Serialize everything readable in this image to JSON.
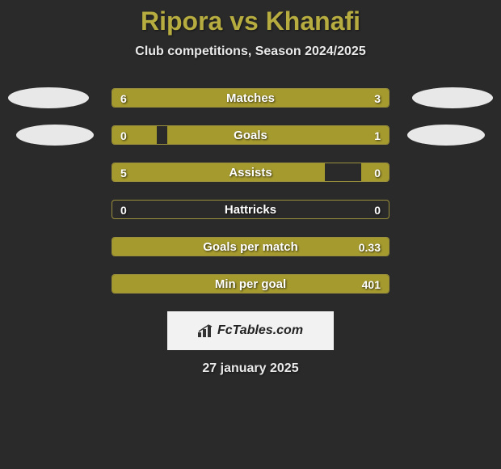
{
  "title_color": "#b7ac3f",
  "title_parts": {
    "p1": "Ripora",
    "vs": "vs",
    "p2": "Khanafi"
  },
  "subtitle": "Club competitions, Season 2024/2025",
  "bar_color": "#a59a2e",
  "border_color": "#9a8f3a",
  "oval_color": "#e8e8e8",
  "background_color": "#2a2a2a",
  "rows": [
    {
      "label": "Matches",
      "lval": "6",
      "rval": "3",
      "lpct": 66,
      "rpct": 34,
      "ovals": true,
      "oval_row": 1
    },
    {
      "label": "Goals",
      "lval": "0",
      "rval": "1",
      "lpct": 16,
      "rpct": 80,
      "ovals": true,
      "oval_row": 2
    },
    {
      "label": "Assists",
      "lval": "5",
      "rval": "0",
      "lpct": 77,
      "rpct": 10,
      "ovals": false
    },
    {
      "label": "Hattricks",
      "lval": "0",
      "rval": "0",
      "lpct": 0,
      "rpct": 0,
      "ovals": false
    },
    {
      "label": "Goals per match",
      "lval": "",
      "rval": "0.33",
      "lpct": 100,
      "rpct": 0,
      "ovals": false
    },
    {
      "label": "Min per goal",
      "lval": "",
      "rval": "401",
      "lpct": 100,
      "rpct": 0,
      "ovals": false
    }
  ],
  "brand": "FcTables.com",
  "date": "27 january 2025",
  "fontsize": {
    "title": 32,
    "subtitle": 16,
    "barlabel": 15,
    "value": 14,
    "brand": 16,
    "date": 16
  }
}
